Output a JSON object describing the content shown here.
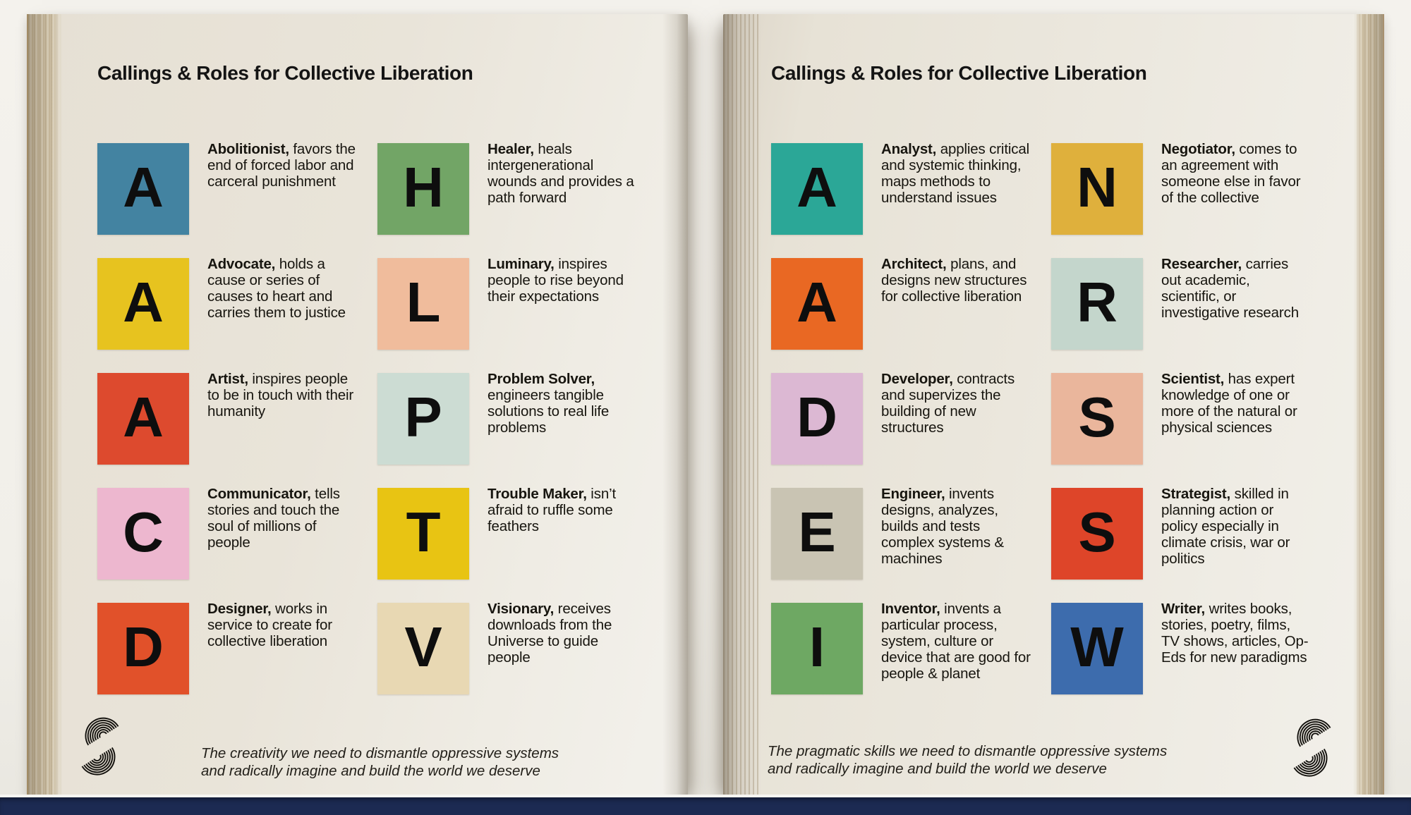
{
  "bottom_bar_color": "#1c2a52",
  "logo_icon": "s-wave-stripes",
  "pages": [
    {
      "title": "Callings & Roles for Collective Liberation",
      "footer": "The creativity we need to dismantle oppressive systems and radically imagine and build the world we deserve",
      "roles": [
        {
          "letter": "A",
          "name": "Abolitionist,",
          "description": "favors the end of forced labor and carceral punishment",
          "color": "#4383a1"
        },
        {
          "letter": "A",
          "name": "Advocate,",
          "description": "holds a cause or series of causes to heart and carries them to justice",
          "color": "#e7c31f"
        },
        {
          "letter": "A",
          "name": "Artist,",
          "description": "inspires people to be in touch with their humanity",
          "color": "#dd4a2e"
        },
        {
          "letter": "C",
          "name": "Communicator,",
          "description": "tells stories and touch the soul of millions of people",
          "color": "#edb7cf"
        },
        {
          "letter": "D",
          "name": "Designer,",
          "description": "works in service to create for collective liberation",
          "color": "#e1512a"
        },
        {
          "letter": "H",
          "name": "Healer,",
          "description": "heals intergenerational wounds and provides a path forward",
          "color": "#72a566"
        },
        {
          "letter": "L",
          "name": "Luminary,",
          "description": "inspires people to rise beyond their expectations",
          "color": "#f0bc9c"
        },
        {
          "letter": "P",
          "name": "Problem Solver,",
          "description": "engineers tangible solutions to real life problems",
          "color": "#ccdcd3"
        },
        {
          "letter": "T",
          "name": "Trouble Maker,",
          "description": "isn’t afraid to ruffle some feathers",
          "color": "#e8c413"
        },
        {
          "letter": "V",
          "name": "Visionary,",
          "description": "receives downloads from the Universe to guide people",
          "color": "#e8d8b3"
        }
      ]
    },
    {
      "title": "Callings & Roles for Collective Liberation",
      "footer": "The pragmatic skills we need to dismantle oppressive systems and radically imagine and build the world we deserve",
      "roles": [
        {
          "letter": "A",
          "name": "Analyst,",
          "description": "applies critical and systemic thinking, maps methods to understand issues",
          "color": "#2ba797"
        },
        {
          "letter": "A",
          "name": "Architect,",
          "description": "plans, and designs new structures for collective liberation",
          "color": "#e96823"
        },
        {
          "letter": "D",
          "name": "Developer,",
          "description": "contracts and supervizes the building of new structures",
          "color": "#dcb8d3"
        },
        {
          "letter": "E",
          "name": "Engineer,",
          "description": "invents designs, analyzes, builds and tests complex systems & machines",
          "color": "#c9c4b3"
        },
        {
          "letter": "I",
          "name": "Inventor,",
          "description": "invents a particular process, system, culture or device that are good for people & planet",
          "color": "#6ea863"
        },
        {
          "letter": "N",
          "name": "Negotiator,",
          "description": "comes to an agreement with someone else in favor of the collective",
          "color": "#dfb03c"
        },
        {
          "letter": "R",
          "name": "Researcher,",
          "description": "carries out academic, scientific, or investigative research",
          "color": "#c4d6cc"
        },
        {
          "letter": "S",
          "name": "Scientist,",
          "description": "has expert knowledge of one or more of the natural or physical sciences",
          "color": "#eab69c"
        },
        {
          "letter": "S",
          "name": "Strategist,",
          "description": "skilled in planning action or policy especially in climate crisis, war or politics",
          "color": "#de4529"
        },
        {
          "letter": "W",
          "name": "Writer,",
          "description": "writes books, stories, poetry, films, TV shows, articles, Op-Eds for new paradigms",
          "color": "#3d6cad"
        }
      ]
    }
  ]
}
